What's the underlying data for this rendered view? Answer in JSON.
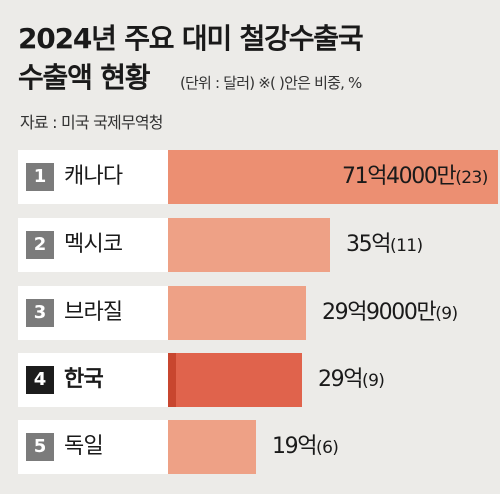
{
  "header": {
    "title_line1": "2024년 주요 대미 철강수출국",
    "title_line2": "수출액 현황",
    "unit_note": "(단위 : 달러)  ※( )안은 비중, %",
    "source": "자료 : 미국 국제무역청"
  },
  "chart_data": {
    "type": "bar",
    "orientation": "horizontal",
    "title": "2024년 주요 대미 철강수출국 수출액 현황",
    "unit": "달러",
    "source": "미국 국제무역청",
    "categories": [
      "캐나다",
      "멕시코",
      "브라질",
      "한국",
      "독일"
    ],
    "ranks": [
      "1",
      "2",
      "3",
      "4",
      "5"
    ],
    "values": [
      7140000000,
      3500000000,
      2990000000,
      2900000000,
      1900000000
    ],
    "value_labels": [
      "71억4000만",
      "35억",
      "29억9000만",
      "29억",
      "19억"
    ],
    "shares": [
      "(23)",
      "(11)",
      "(9)",
      "(9)",
      "(6)"
    ],
    "highlight_category": "한국",
    "colors": {
      "bar": "#eea186",
      "bar_first": "#ec8f72",
      "bar_highlight": "#e0634c",
      "bar_highlight_edge": "#c8462f",
      "rank_badge": "#7b7b7b",
      "rank_badge_highlight": "#1c1c1c",
      "background": "#ecebe8"
    }
  }
}
